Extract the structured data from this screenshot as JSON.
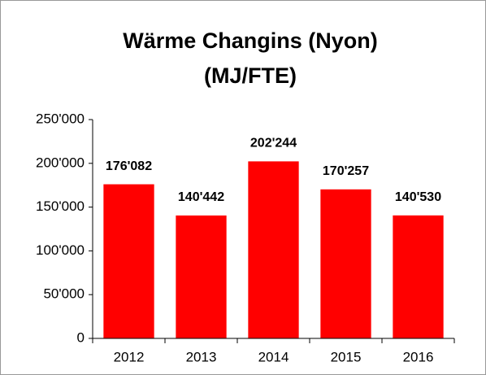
{
  "chart_data": {
    "type": "bar",
    "title": [
      "Wärme Changins (Nyon)",
      "(MJ/FTE)"
    ],
    "categories": [
      "2012",
      "2013",
      "2014",
      "2015",
      "2016"
    ],
    "values": [
      176082,
      140442,
      202244,
      170257,
      140530
    ],
    "value_labels": [
      "176'082",
      "140'442",
      "202'244",
      "170'257",
      "140'530"
    ],
    "color": "#ff0000",
    "ylim": [
      0,
      250000
    ],
    "yticks": [
      0,
      {
        "value": 50000,
        "label": "50'000"
      },
      {
        "value": 100000,
        "label": "100'000"
      },
      {
        "value": 150000,
        "label": "150'000"
      },
      {
        "value": 200000,
        "label": "200'000"
      },
      {
        "value": 250000,
        "label": "250'000"
      }
    ],
    "grid": false
  }
}
